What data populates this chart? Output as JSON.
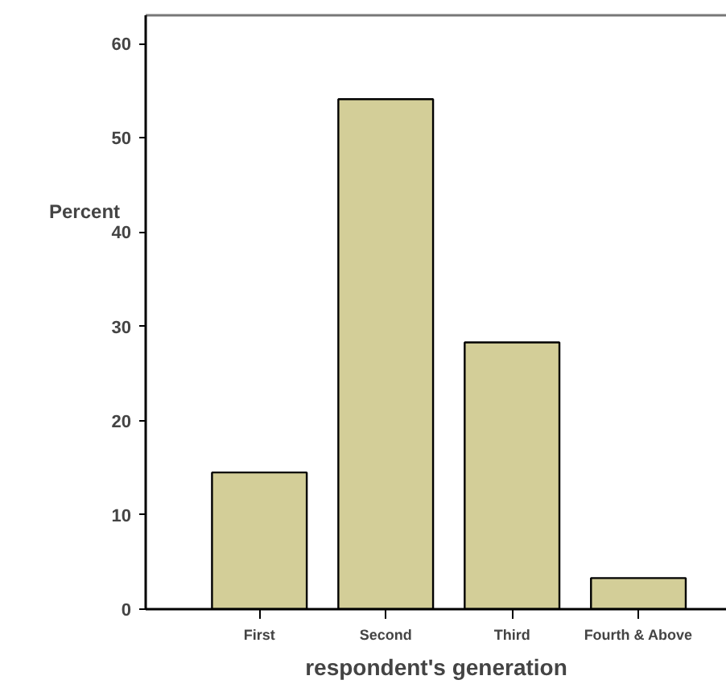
{
  "chart_data": {
    "type": "bar",
    "xlabel": "respondent's generation",
    "ylabel": "Percent",
    "categories": [
      "First",
      "Second",
      "Third",
      "Fourth & Above"
    ],
    "values": [
      14.5,
      54.1,
      28.3,
      3.3
    ],
    "color": "#d3ce98",
    "ylim": [
      0,
      63
    ],
    "yticks": [
      0,
      10,
      20,
      30,
      40,
      50,
      60
    ],
    "grid": false
  }
}
